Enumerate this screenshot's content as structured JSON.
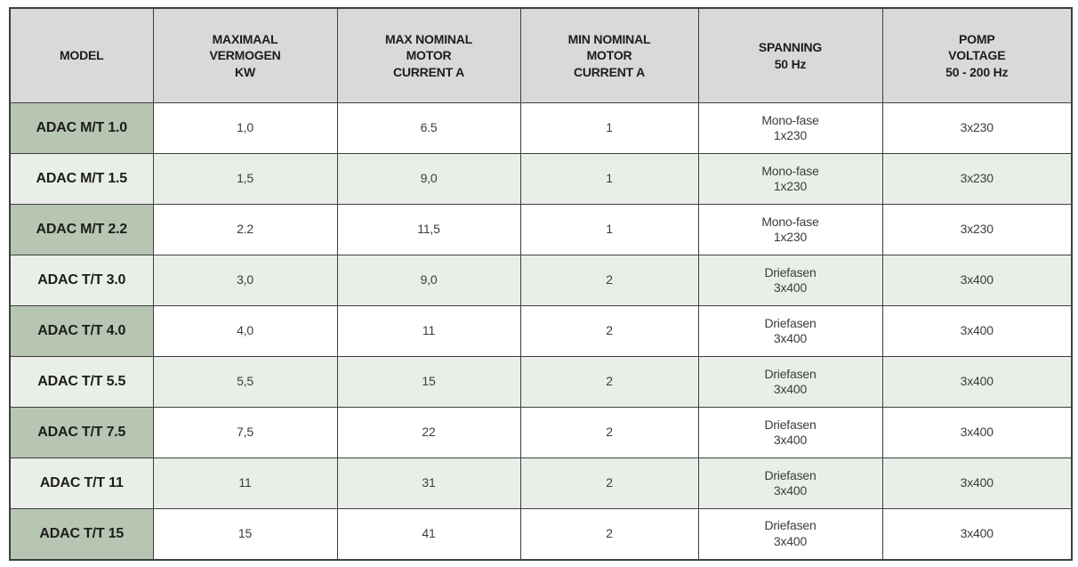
{
  "colors": {
    "header_bg": "#d9d9d9",
    "model_column_bg": "#b6c6b2",
    "row_alt_bg": "#e9efe8",
    "row_bg": "#ffffff",
    "border": "#3e3e3e",
    "header_text": "#1d1d1b",
    "cell_text": "#3c3c3c"
  },
  "table": {
    "headers": {
      "model": "MODEL",
      "max_power": "MAXIMAAL\nVERMOGEN\nKW",
      "max_current": "MAX NOMINAL\nMOTOR\nCURRENT A",
      "min_current": "MIN NOMINAL\nMOTOR\nCURRENT A",
      "spanning": "SPANNING\n50 Hz",
      "pomp_voltage": "POMP\nVOLTAGE\n50 - 200 Hz"
    },
    "rows": [
      {
        "model": "ADAC M/T 1.0",
        "max_power": "1,0",
        "max_current": "6.5",
        "min_current": "1",
        "spanning": "Mono-fase\n1x230",
        "pomp_voltage": "3x230"
      },
      {
        "model": "ADAC M/T 1.5",
        "max_power": "1,5",
        "max_current": "9,0",
        "min_current": "1",
        "spanning": "Mono-fase\n1x230",
        "pomp_voltage": "3x230"
      },
      {
        "model": "ADAC M/T 2.2",
        "max_power": "2.2",
        "max_current": "11,5",
        "min_current": "1",
        "spanning": "Mono-fase\n1x230",
        "pomp_voltage": "3x230"
      },
      {
        "model": "ADAC T/T 3.0",
        "max_power": "3,0",
        "max_current": "9,0",
        "min_current": "2",
        "spanning": "Driefasen\n3x400",
        "pomp_voltage": "3x400"
      },
      {
        "model": "ADAC T/T 4.0",
        "max_power": "4,0",
        "max_current": "11",
        "min_current": "2",
        "spanning": "Driefasen\n3x400",
        "pomp_voltage": "3x400"
      },
      {
        "model": "ADAC T/T 5.5",
        "max_power": "5,5",
        "max_current": "15",
        "min_current": "2",
        "spanning": "Driefasen\n3x400",
        "pomp_voltage": "3x400"
      },
      {
        "model": "ADAC T/T 7.5",
        "max_power": "7,5",
        "max_current": "22",
        "min_current": "2",
        "spanning": "Driefasen\n3x400",
        "pomp_voltage": "3x400"
      },
      {
        "model": "ADAC T/T 11",
        "max_power": "11",
        "max_current": "31",
        "min_current": "2",
        "spanning": "Driefasen\n3x400",
        "pomp_voltage": "3x400"
      },
      {
        "model": "ADAC T/T 15",
        "max_power": "15",
        "max_current": "41",
        "min_current": "2",
        "spanning": "Driefasen\n3x400",
        "pomp_voltage": "3x400"
      }
    ]
  }
}
